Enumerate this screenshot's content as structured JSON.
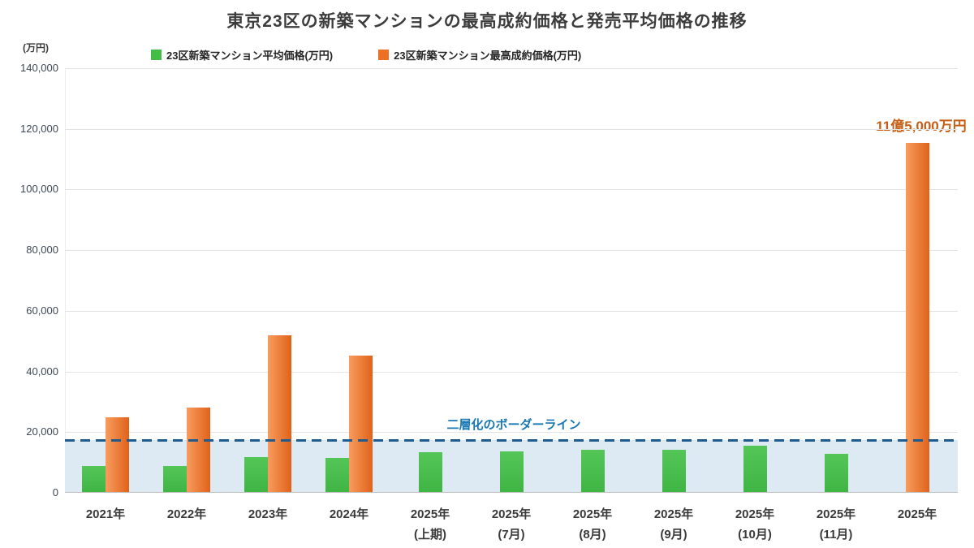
{
  "title": "東京23区の新築マンションの最高成約価格と発売平均価格の推移",
  "y_unit_label": "(万円)",
  "legend": [
    {
      "label": "23区新築マンション平均価格(万円)",
      "color": "#44bc48"
    },
    {
      "label": "23区新築マンション最高成約価格(万円)",
      "color": "#ec7124"
    }
  ],
  "annotations": {
    "max_price_label": "11億5,000万円",
    "borderline_label": "二層化のボーダーライン"
  },
  "chart_data": {
    "type": "bar",
    "title": "東京23区の新築マンションの最高成約価格と発売平均価格の推移",
    "ylabel": "(万円)",
    "ylim": [
      0,
      140000
    ],
    "ytick_values": [
      0,
      20000,
      40000,
      60000,
      80000,
      100000,
      120000,
      140000
    ],
    "ytick_labels": [
      "0",
      "20,000",
      "40,000",
      "60,000",
      "80,000",
      "100,000",
      "120,000",
      "140,000"
    ],
    "grid": true,
    "legend_position": "top",
    "categories": [
      [
        "2021年"
      ],
      [
        "2022年"
      ],
      [
        "2023年"
      ],
      [
        "2024年"
      ],
      [
        "2025年",
        "(上期)"
      ],
      [
        "2025年",
        "(7月)"
      ],
      [
        "2025年",
        "(8月)"
      ],
      [
        "2025年",
        "(9月)"
      ],
      [
        "2025年",
        "(10月)"
      ],
      [
        "2025年",
        "(11月)"
      ],
      [
        "2025年"
      ]
    ],
    "series": [
      {
        "name": "23区新築マンション平均価格(万円)",
        "color": "#44bc48",
        "values": [
          8500,
          8500,
          11500,
          11200,
          13000,
          13500,
          13800,
          13800,
          15300,
          12600,
          null
        ]
      },
      {
        "name": "23区新築マンション最高成約価格(万円)",
        "color": "#ec7124",
        "values": [
          24500,
          27800,
          51800,
          45000,
          null,
          null,
          null,
          null,
          null,
          null,
          115000
        ]
      }
    ],
    "borderline_value": 17500,
    "borderline_label": "二層化のボーダーライン",
    "borderline_color": "#1f5c8d",
    "band": {
      "from": 0,
      "to": 17500,
      "color": "#dde9f3"
    },
    "max_bar_annotation": {
      "category_index": 10,
      "text": "11億5,000万円",
      "value": 115000
    }
  }
}
